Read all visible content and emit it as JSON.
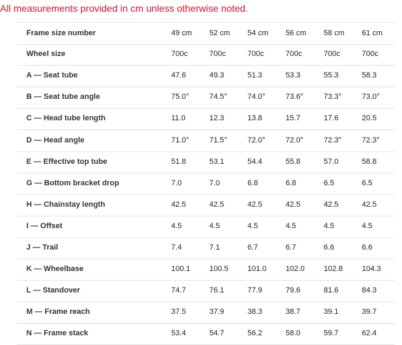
{
  "note": "All measurements provided in cm unless otherwise noted.",
  "table": {
    "rows": [
      [
        "Frame size number",
        "49 cm",
        "52 cm",
        "54 cm",
        "56 cm",
        "58 cm",
        "61 cm"
      ],
      [
        "Wheel size",
        "700c",
        "700c",
        "700c",
        "700c",
        "700c",
        "700c"
      ],
      [
        "A — Seat tube",
        "47.6",
        "49.3",
        "51.3",
        "53.3",
        "55.3",
        "58.3"
      ],
      [
        "B — Seat tube angle",
        "75.0°",
        "74.5°",
        "74.0°",
        "73.6°",
        "73.3°",
        "73.0°"
      ],
      [
        "C — Head tube length",
        "11.0",
        "12.3",
        "13.8",
        "15.7",
        "17.6",
        "20.5"
      ],
      [
        "D — Head angle",
        "71.0°",
        "71.5°",
        "72.0°",
        "72.0°",
        "72.3°",
        "72.3°"
      ],
      [
        "E — Effective top tube",
        "51.8",
        "53.1",
        "54.4",
        "55.8",
        "57.0",
        "58.8"
      ],
      [
        "G — Bottom bracket drop",
        "7.0",
        "7.0",
        "6.8",
        "6.8",
        "6.5",
        "6.5"
      ],
      [
        "H — Chainstay length",
        "42.5",
        "42.5",
        "42.5",
        "42.5",
        "42.5",
        "42.5"
      ],
      [
        "I — Offset",
        "4.5",
        "4.5",
        "4.5",
        "4.5",
        "4.5",
        "4.5"
      ],
      [
        "J — Trail",
        "7.4",
        "7.1",
        "6.7",
        "6.7",
        "6.6",
        "6.6"
      ],
      [
        "K — Wheelbase",
        "100.1",
        "100.5",
        "101.0",
        "102.0",
        "102.8",
        "104.3"
      ],
      [
        "L — Standover",
        "74.7",
        "76.1",
        "77.9",
        "79.6",
        "81.6",
        "84.3"
      ],
      [
        "M — Frame reach",
        "37.5",
        "37.9",
        "38.3",
        "38.7",
        "39.1",
        "39.7"
      ],
      [
        "N — Frame stack",
        "53.4",
        "54.7",
        "56.2",
        "58.0",
        "59.7",
        "62.4"
      ]
    ]
  }
}
